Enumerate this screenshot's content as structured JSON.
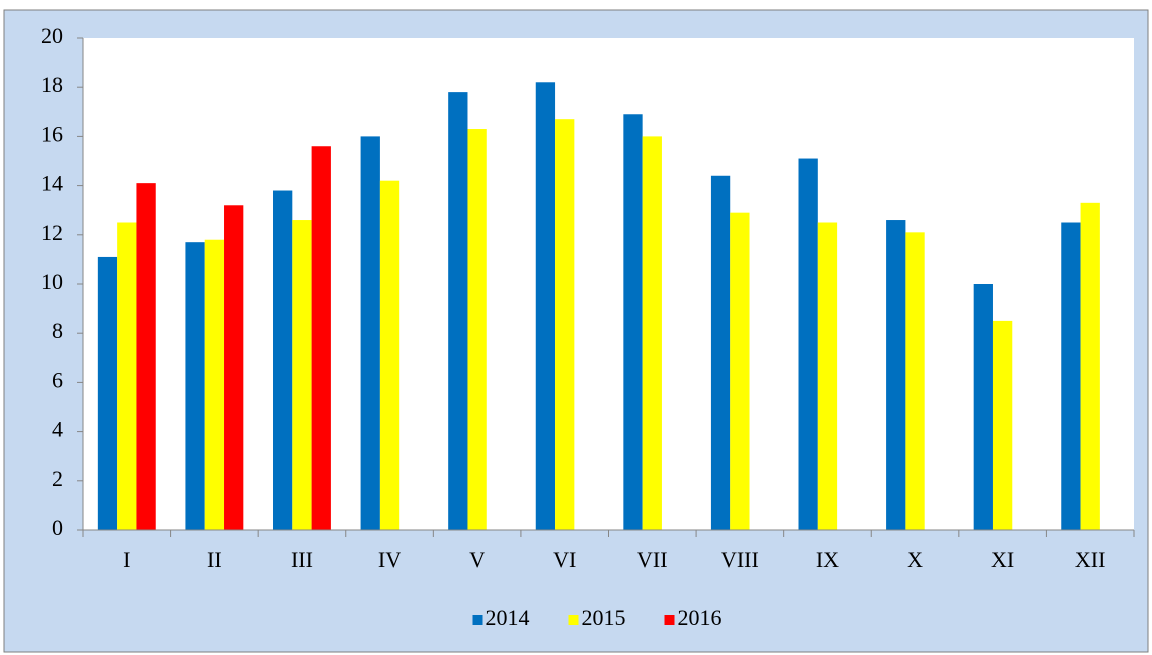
{
  "chart_data": {
    "type": "bar",
    "categories": [
      "I",
      "II",
      "III",
      "IV",
      "V",
      "VI",
      "VII",
      "VIII",
      "IX",
      "X",
      "XI",
      "XII"
    ],
    "series": [
      {
        "name": "2014",
        "color": "#0070c0",
        "values": [
          11.1,
          11.7,
          13.8,
          16.0,
          17.8,
          18.2,
          16.9,
          14.4,
          15.1,
          12.6,
          10.0,
          12.5
        ]
      },
      {
        "name": "2015",
        "color": "#ffff00",
        "values": [
          12.5,
          11.8,
          12.6,
          14.2,
          16.3,
          16.7,
          16.0,
          12.9,
          12.5,
          12.1,
          8.5,
          13.3
        ]
      },
      {
        "name": "2016",
        "color": "#ff0000",
        "values": [
          14.1,
          13.2,
          15.6,
          null,
          null,
          null,
          null,
          null,
          null,
          null,
          null,
          null
        ]
      }
    ],
    "ylim": [
      0,
      20
    ],
    "yticks": [
      0,
      2,
      4,
      6,
      8,
      10,
      12,
      14,
      16,
      18,
      20
    ],
    "grid": false,
    "legend": "bottom"
  }
}
